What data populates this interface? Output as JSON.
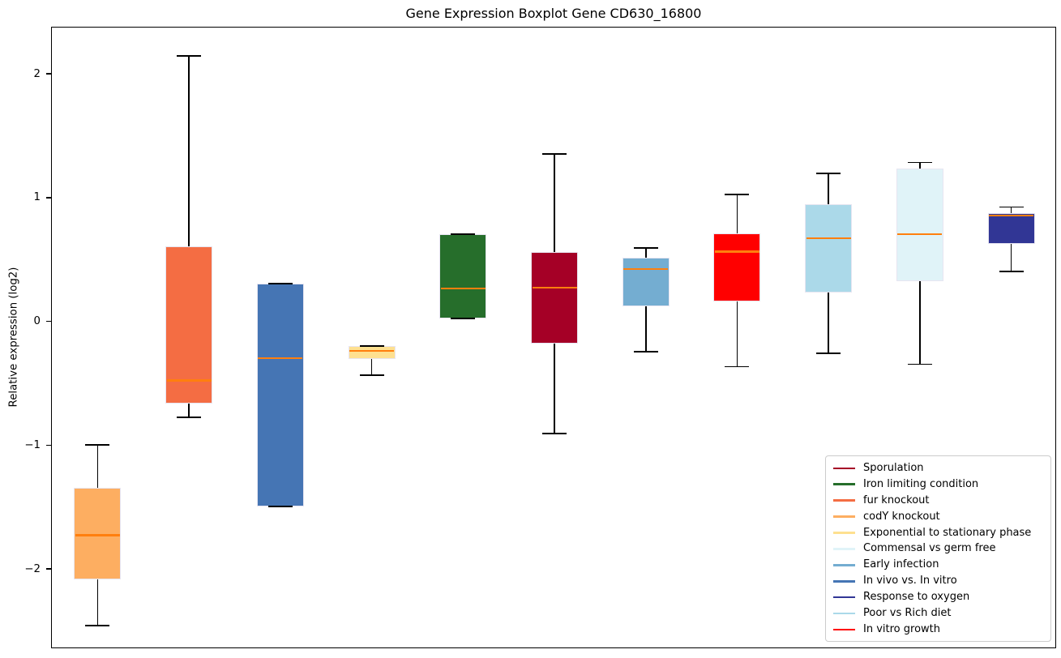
{
  "title": "Gene Expression Boxplot Gene CD630_16800",
  "y_axis": {
    "label": "Relative expression (log2)",
    "tick_values": [
      2,
      1,
      0,
      -1,
      -2
    ],
    "tick_labels": [
      "2",
      "1",
      "0",
      "−1",
      "−2"
    ]
  },
  "chart_data": {
    "type": "boxplot",
    "title": "Gene Expression Boxplot Gene CD630_16800",
    "xlabel": "",
    "ylabel": "Relative expression (log2)",
    "ylim": [
      -2.64,
      2.38
    ],
    "grid": false,
    "legend_position": "lower right",
    "x_tick_labels_visible": false,
    "series": [
      {
        "name": "codY knockout",
        "color": "#fdae61",
        "whisker_low": -2.45,
        "q1": -2.08,
        "median": -1.72,
        "q3": -1.34,
        "whisker_high": -0.99
      },
      {
        "name": "fur knockout",
        "color": "#f46d43",
        "whisker_low": -0.77,
        "q1": -0.66,
        "median": -0.47,
        "q3": 0.61,
        "whisker_high": 2.15
      },
      {
        "name": "In vivo vs. In vitro",
        "color": "#4575b4",
        "whisker_low": -1.49,
        "q1": -1.49,
        "median": -0.29,
        "q3": 0.31,
        "whisker_high": 0.31
      },
      {
        "name": "Exponential to stationary phase",
        "color": "#fee090",
        "whisker_low": -0.43,
        "q1": -0.3,
        "median": -0.23,
        "q3": -0.19,
        "whisker_high": -0.19
      },
      {
        "name": "Iron limiting condition",
        "color": "#266e2b",
        "whisker_low": 0.03,
        "q1": 0.03,
        "median": 0.27,
        "q3": 0.71,
        "whisker_high": 0.71
      },
      {
        "name": "Sporulation",
        "color": "#a50026",
        "whisker_low": -0.9,
        "q1": -0.17,
        "median": 0.28,
        "q3": 0.57,
        "whisker_high": 1.36
      },
      {
        "name": "Early infection",
        "color": "#74add1",
        "whisker_low": -0.24,
        "q1": 0.13,
        "median": 0.43,
        "q3": 0.52,
        "whisker_high": 0.6
      },
      {
        "name": "In vitro growth",
        "color": "#ff0000",
        "whisker_low": -0.36,
        "q1": 0.17,
        "median": 0.57,
        "q3": 0.72,
        "whisker_high": 1.03
      },
      {
        "name": "Poor vs Rich diet",
        "color": "#abd9e9",
        "whisker_low": -0.25,
        "q1": 0.24,
        "median": 0.68,
        "q3": 0.95,
        "whisker_high": 1.2
      },
      {
        "name": "Commensal vs germ free",
        "color": "#e0f3f8",
        "whisker_low": -0.34,
        "q1": 0.33,
        "median": 0.71,
        "q3": 1.24,
        "whisker_high": 1.29
      },
      {
        "name": "Response to oxygen",
        "color": "#313695",
        "whisker_low": 0.41,
        "q1": 0.63,
        "median": 0.86,
        "q3": 0.88,
        "whisker_high": 0.93
      }
    ],
    "style": {
      "median_color": "#ff7f0e",
      "whisker_color": "#000000",
      "box_edge_color": "#e7e5f1"
    }
  },
  "legend": {
    "items": [
      {
        "label": "Sporulation",
        "color": "#a50026"
      },
      {
        "label": "Iron limiting condition",
        "color": "#266e2b"
      },
      {
        "label": "fur knockout",
        "color": "#f46d43"
      },
      {
        "label": "codY knockout",
        "color": "#fdae61"
      },
      {
        "label": "Exponential to stationary phase",
        "color": "#fee090"
      },
      {
        "label": "Commensal vs germ free",
        "color": "#e0f3f8"
      },
      {
        "label": "Early infection",
        "color": "#74add1"
      },
      {
        "label": "In vivo vs. In vitro",
        "color": "#4575b4"
      },
      {
        "label": "Response to oxygen",
        "color": "#313695"
      },
      {
        "label": "Poor vs Rich diet",
        "color": "#abd9e9"
      },
      {
        "label": "In vitro growth",
        "color": "#ff0000"
      }
    ]
  }
}
